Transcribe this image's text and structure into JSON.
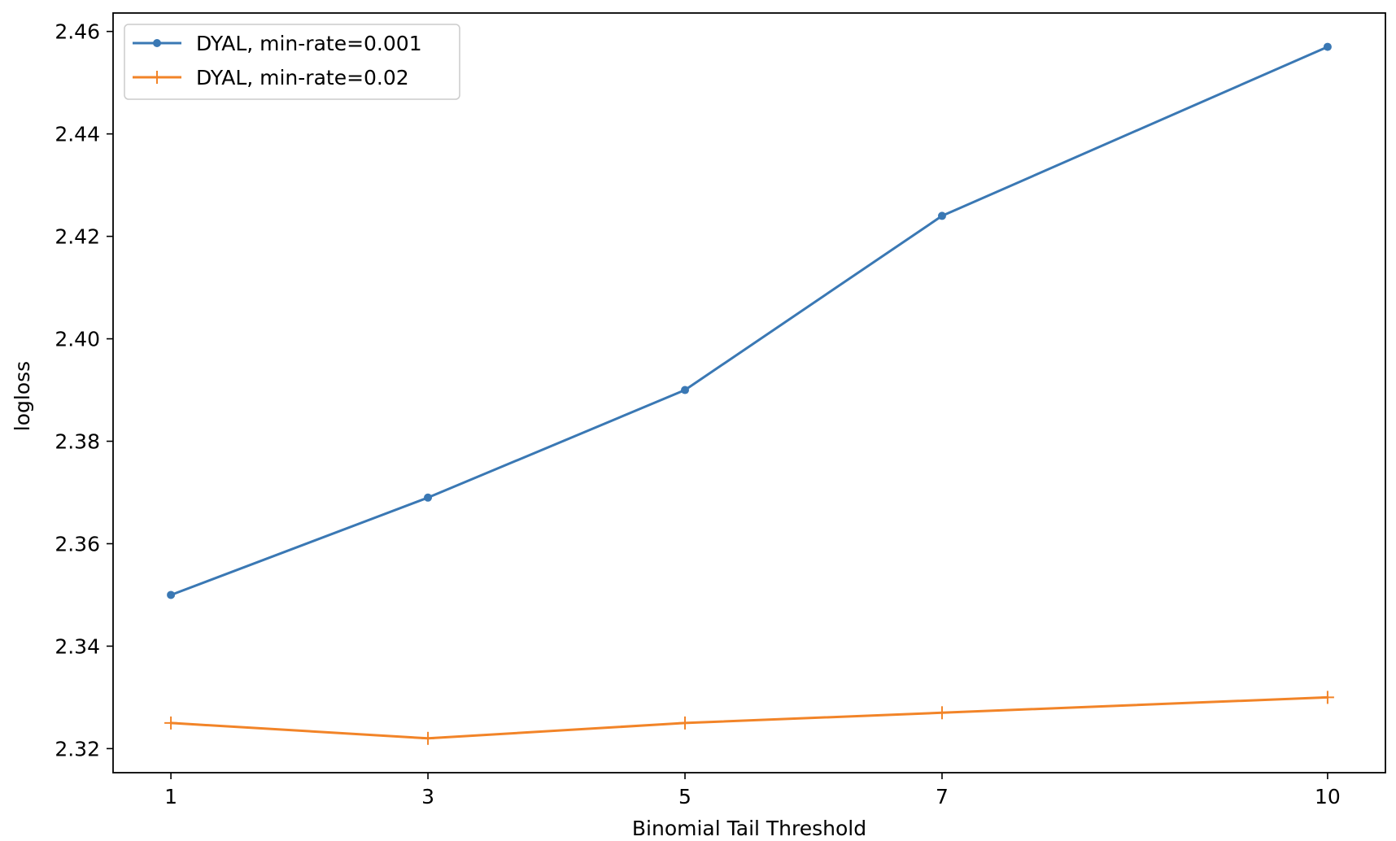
{
  "chart_data": {
    "type": "line",
    "title": "",
    "xlabel": "Binomial Tail Threshold",
    "ylabel": "logloss",
    "x": [
      1,
      3,
      5,
      7,
      10
    ],
    "x_tick_labels": [
      "1",
      "3",
      "5",
      "7",
      "10"
    ],
    "y_tick_labels": [
      "2.32",
      "2.34",
      "2.36",
      "2.38",
      "2.40",
      "2.42",
      "2.44",
      "2.46"
    ],
    "y_ticks": [
      2.32,
      2.34,
      2.36,
      2.38,
      2.4,
      2.42,
      2.44,
      2.46
    ],
    "xlim": [
      0.55,
      10.45
    ],
    "ylim": [
      2.3153,
      2.4636
    ],
    "grid": false,
    "legend_position": "top-left",
    "series": [
      {
        "name": "DYAL, min-rate=0.001",
        "color": "#3a78b4",
        "marker": "dot",
        "values": [
          2.35,
          2.369,
          2.39,
          2.424,
          2.457
        ]
      },
      {
        "name": "DYAL, min-rate=0.02",
        "color": "#f28428",
        "marker": "plus",
        "values": [
          2.325,
          2.322,
          2.325,
          2.327,
          2.33
        ]
      }
    ]
  }
}
